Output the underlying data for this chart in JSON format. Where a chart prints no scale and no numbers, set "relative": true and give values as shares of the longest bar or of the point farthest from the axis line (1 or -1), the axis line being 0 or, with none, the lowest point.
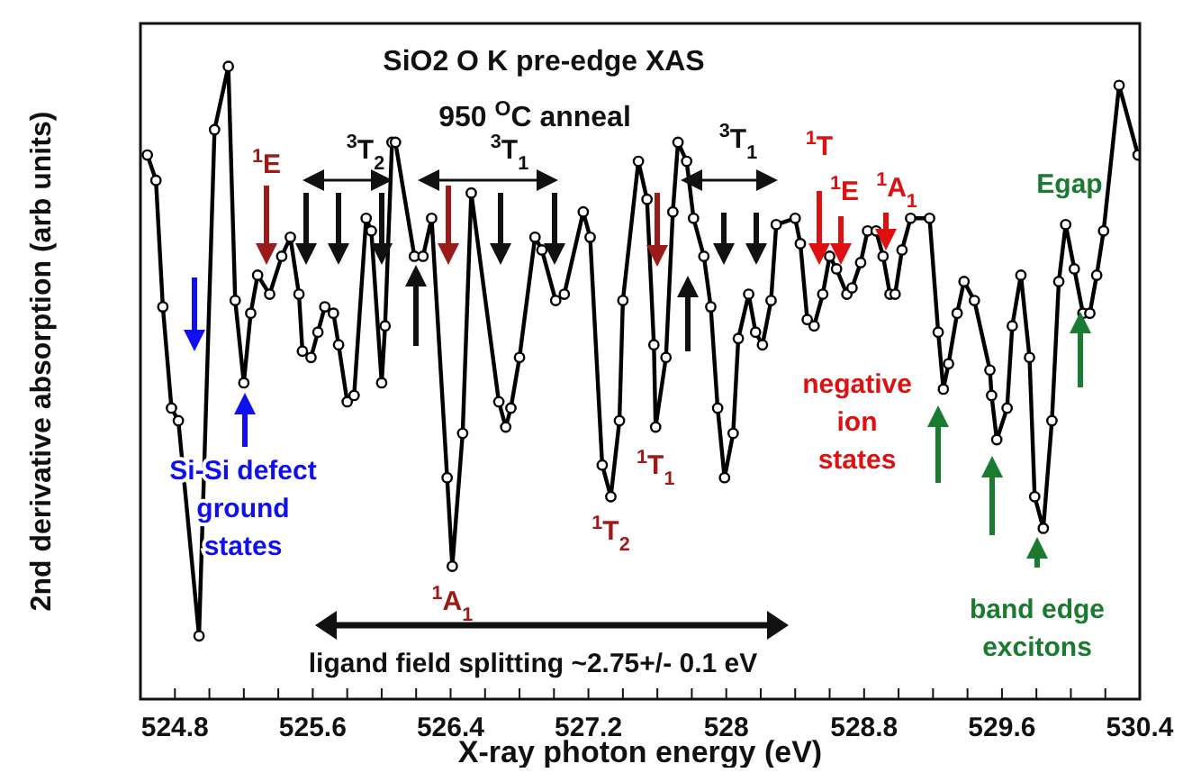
{
  "chart_data": {
    "type": "line",
    "title": "SiO2 O K pre-edge XAS",
    "subtitle": "950 $^{O}$C anneal",
    "xlabel": "X-ray photon energy (eV)",
    "ylabel": "2nd derivative absorption (arb units)",
    "relative": true,
    "marker": "circle",
    "line_style": "solid",
    "color": "#000000",
    "xlim": [
      524.6,
      530.4
    ],
    "xticks": [
      524.8,
      {
        "value": 525.0,
        "label": null
      },
      {
        "value": 525.2,
        "label": null
      },
      {
        "value": 525.4,
        "label": null
      },
      525.6,
      {
        "value": 525.8,
        "label": null
      },
      {
        "value": 526.0,
        "label": null
      },
      {
        "value": 526.2,
        "label": null
      },
      526.4,
      {
        "value": 526.6,
        "label": null
      },
      {
        "value": 526.8,
        "label": null
      },
      {
        "value": 527.0,
        "label": null
      },
      527.2,
      {
        "value": 527.4,
        "label": null
      },
      {
        "value": 527.6,
        "label": null
      },
      {
        "value": 527.8,
        "label": null
      },
      528,
      {
        "value": 528.2,
        "label": null
      },
      {
        "value": 528.4,
        "label": null
      },
      {
        "value": 528.6,
        "label": null
      },
      528.8,
      {
        "value": 529.0,
        "label": null
      },
      {
        "value": 529.2,
        "label": null
      },
      {
        "value": 529.4,
        "label": null
      },
      529.6,
      {
        "value": 529.8,
        "label": null
      },
      {
        "value": 530.0,
        "label": null
      },
      {
        "value": 530.2,
        "label": null
      },
      530.4
    ],
    "x": [
      524.64,
      524.69,
      524.73,
      524.78,
      524.82,
      524.94,
      525.03,
      525.11,
      525.15,
      525.2,
      525.24,
      525.28,
      525.35,
      525.42,
      525.47,
      525.52,
      525.54,
      525.59,
      525.63,
      525.67,
      525.72,
      525.75,
      525.8,
      525.84,
      525.91,
      525.94,
      526.0,
      526.02,
      526.06,
      526.08,
      526.19,
      526.24,
      526.29,
      526.38,
      526.41,
      526.47,
      526.52,
      526.68,
      526.72,
      526.75,
      526.8,
      526.89,
      526.93,
      527.01,
      527.06,
      527.17,
      527.21,
      527.28,
      527.33,
      527.38,
      527.4,
      527.49,
      527.54,
      527.58,
      527.59,
      527.65,
      527.69,
      527.72,
      527.77,
      527.81,
      527.87,
      527.91,
      527.95,
      527.99,
      528.04,
      528.07,
      528.13,
      528.17,
      528.21,
      528.26,
      528.29,
      528.4,
      528.43,
      528.47,
      528.51,
      528.56,
      528.6,
      528.64,
      528.7,
      528.73,
      528.78,
      528.82,
      528.87,
      528.91,
      528.95,
      528.98,
      529.02,
      529.07,
      529.18,
      529.23,
      529.26,
      529.29,
      529.34,
      529.38,
      529.44,
      529.53,
      529.54,
      529.57,
      529.63,
      529.66,
      529.71,
      529.76,
      529.79,
      529.84,
      529.89,
      529.93,
      529.97,
      530.02,
      530.07,
      530.11,
      530.15,
      530.19,
      530.28,
      530.39
    ],
    "values": [
      0.86,
      0.82,
      0.62,
      0.46,
      0.44,
      0.1,
      0.9,
      1.0,
      0.63,
      0.5,
      0.61,
      0.67,
      0.64,
      0.7,
      0.73,
      0.64,
      0.55,
      0.54,
      0.58,
      0.62,
      0.61,
      0.56,
      0.47,
      0.48,
      0.76,
      0.74,
      0.5,
      0.59,
      0.88,
      0.88,
      0.7,
      0.7,
      0.76,
      0.35,
      0.21,
      0.42,
      0.8,
      0.47,
      0.43,
      0.46,
      0.54,
      0.73,
      0.71,
      0.63,
      0.64,
      0.77,
      0.73,
      0.37,
      0.32,
      0.44,
      0.63,
      0.85,
      0.79,
      0.56,
      0.43,
      0.54,
      0.77,
      0.88,
      0.85,
      0.76,
      0.7,
      0.62,
      0.46,
      0.35,
      0.42,
      0.57,
      0.64,
      0.58,
      0.56,
      0.63,
      0.75,
      0.76,
      0.72,
      0.6,
      0.59,
      0.64,
      0.7,
      0.68,
      0.64,
      0.65,
      0.69,
      0.74,
      0.74,
      0.7,
      0.64,
      0.64,
      0.71,
      0.76,
      0.76,
      0.58,
      0.49,
      0.53,
      0.61,
      0.66,
      0.63,
      0.52,
      0.48,
      0.41,
      0.46,
      0.59,
      0.67,
      0.54,
      0.32,
      0.27,
      0.44,
      0.66,
      0.75,
      0.68,
      0.61,
      0.61,
      0.67,
      0.74,
      0.97,
      0.86
    ],
    "annotations": [
      "$^{1}$E",
      "$^{3}$T$_{2}$",
      "$^{3}$T$_{1}$",
      "$^{3}$T$_{1}$",
      "$^{1}$T",
      "$^{1}$E",
      "$^{1}$A$_{1}$",
      "Egap",
      "negative ion states",
      "Si-Si defect ground states",
      {
        "text": "$^{1}$A$_{1}$",
        "x": 526.41,
        "y": 0.21
      },
      {
        "text": "$^{1}$T$_{2}$",
        "x": 527.33,
        "y": 0.32
      },
      {
        "text": "$^{1}$T$_{1}$",
        "x": 527.59,
        "y": 0.43
      },
      "band edge excitons",
      "ligand field splitting ~2.75+/- 0.1 eV"
    ]
  }
}
